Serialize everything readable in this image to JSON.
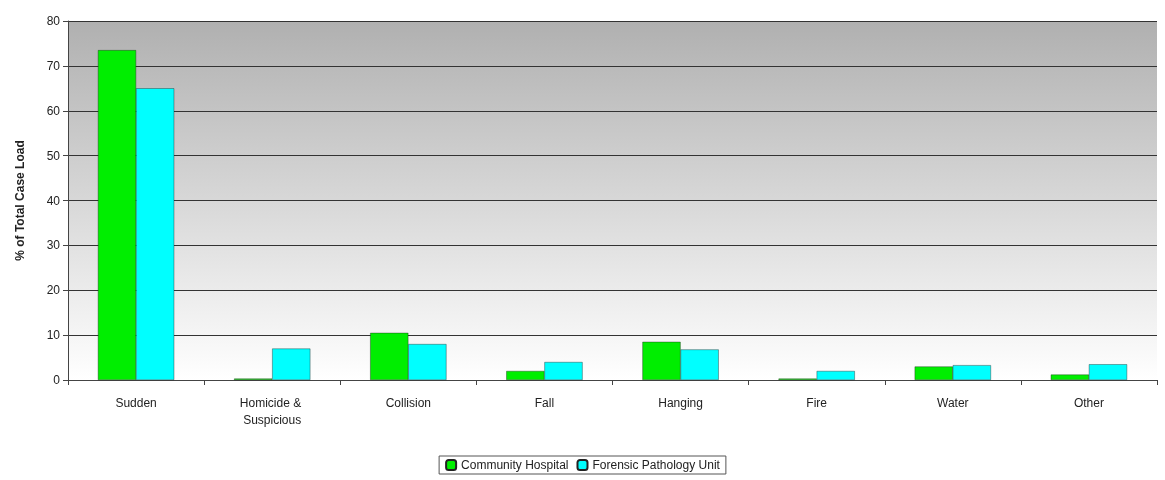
{
  "chart_data": {
    "type": "bar",
    "ylabel": "% of Total Case Load",
    "categories": [
      "Sudden",
      "Homicide & Suspicious",
      "Collision",
      "Fall",
      "Hanging",
      "Fire",
      "Water",
      "Other"
    ],
    "series": [
      {
        "name": "Community Hospital",
        "color": "#00ee00",
        "values": [
          73.5,
          0.3,
          10.5,
          2,
          8.5,
          0.3,
          3,
          1.2
        ]
      },
      {
        "name": "Forensic Pathology Unit",
        "color": "#00ffff",
        "values": [
          65,
          7,
          8,
          4,
          6.8,
          2,
          3.3,
          3.5
        ]
      }
    ],
    "ylim": [
      0,
      80
    ],
    "yticks": [
      0,
      10,
      20,
      30,
      40,
      50,
      60,
      70,
      80
    ],
    "grid": "y",
    "legend": "bottom"
  }
}
